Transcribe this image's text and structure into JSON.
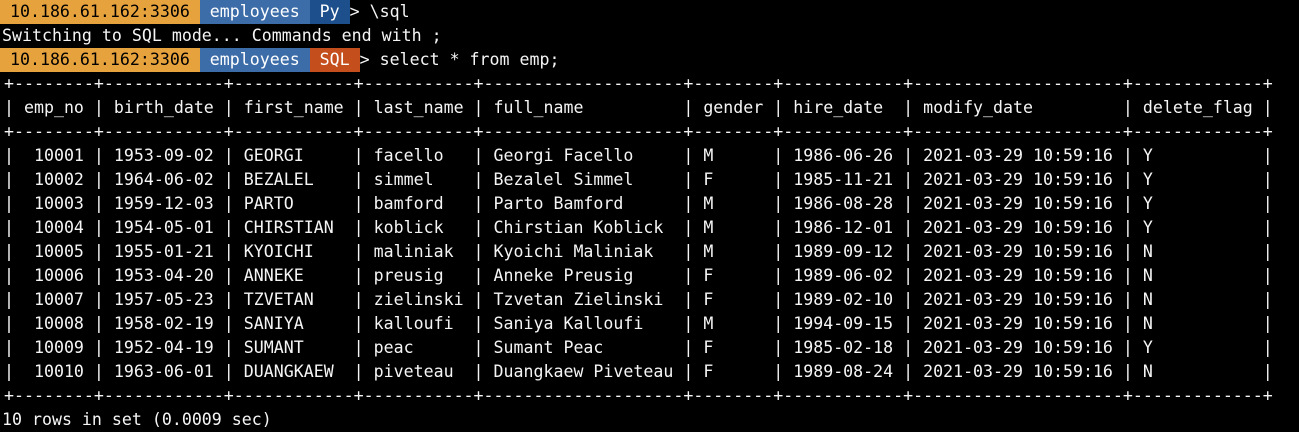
{
  "terminal": {
    "message": "Switching to SQL mode... Commands end with ;",
    "space": " ",
    "prompt_py": {
      "host": "10.186.61.162:3306",
      "schema": "employees",
      "mode": "Py",
      "arrow": ">",
      "command": "\\sql"
    },
    "prompt_sql": {
      "host": "10.186.61.162:3306",
      "schema": "employees",
      "mode": "SQL",
      "arrow": ">",
      "command": "select * from emp;"
    },
    "result_footer": "10 rows in set (0.0009 sec)"
  },
  "colors": {
    "background": "#000000",
    "foreground": "#f5f5f5",
    "host_badge_bg": "#e6a23c",
    "host_badge_fg": "#000000",
    "schema_badge_bg": "#3d6da8",
    "py_badge_bg": "#1d4f8c",
    "sql_badge_bg": "#c44e1c"
  },
  "result_table": {
    "columns": [
      {
        "name": "emp_no",
        "width": 6,
        "align": "right"
      },
      {
        "name": "birth_date",
        "width": 10,
        "align": "left"
      },
      {
        "name": "first_name",
        "width": 10,
        "align": "left"
      },
      {
        "name": "last_name",
        "width": 9,
        "align": "left"
      },
      {
        "name": "full_name",
        "width": 18,
        "align": "left"
      },
      {
        "name": "gender",
        "width": 6,
        "align": "left"
      },
      {
        "name": "hire_date",
        "width": 10,
        "align": "left"
      },
      {
        "name": "modify_date",
        "width": 19,
        "align": "left"
      },
      {
        "name": "delete_flag",
        "width": 11,
        "align": "left"
      }
    ],
    "rows": [
      [
        "10001",
        "1953-09-02",
        "GEORGI",
        "facello",
        "Georgi Facello",
        "M",
        "1986-06-26",
        "2021-03-29 10:59:16",
        "Y"
      ],
      [
        "10002",
        "1964-06-02",
        "BEZALEL",
        "simmel",
        "Bezalel Simmel",
        "F",
        "1985-11-21",
        "2021-03-29 10:59:16",
        "Y"
      ],
      [
        "10003",
        "1959-12-03",
        "PARTO",
        "bamford",
        "Parto Bamford",
        "M",
        "1986-08-28",
        "2021-03-29 10:59:16",
        "Y"
      ],
      [
        "10004",
        "1954-05-01",
        "CHIRSTIAN",
        "koblick",
        "Chirstian Koblick",
        "M",
        "1986-12-01",
        "2021-03-29 10:59:16",
        "Y"
      ],
      [
        "10005",
        "1955-01-21",
        "KYOICHI",
        "maliniak",
        "Kyoichi Maliniak",
        "M",
        "1989-09-12",
        "2021-03-29 10:59:16",
        "N"
      ],
      [
        "10006",
        "1953-04-20",
        "ANNEKE",
        "preusig",
        "Anneke Preusig",
        "F",
        "1989-06-02",
        "2021-03-29 10:59:16",
        "N"
      ],
      [
        "10007",
        "1957-05-23",
        "TZVETAN",
        "zielinski",
        "Tzvetan Zielinski",
        "F",
        "1989-02-10",
        "2021-03-29 10:59:16",
        "N"
      ],
      [
        "10008",
        "1958-02-19",
        "SANIYA",
        "kalloufi",
        "Saniya Kalloufi",
        "M",
        "1994-09-15",
        "2021-03-29 10:59:16",
        "N"
      ],
      [
        "10009",
        "1952-04-19",
        "SUMANT",
        "peac",
        "Sumant Peac",
        "F",
        "1985-02-18",
        "2021-03-29 10:59:16",
        "Y"
      ],
      [
        "10010",
        "1963-06-01",
        "DUANGKAEW",
        "piveteau",
        "Duangkaew Piveteau",
        "F",
        "1989-08-24",
        "2021-03-29 10:59:16",
        "N"
      ]
    ]
  }
}
